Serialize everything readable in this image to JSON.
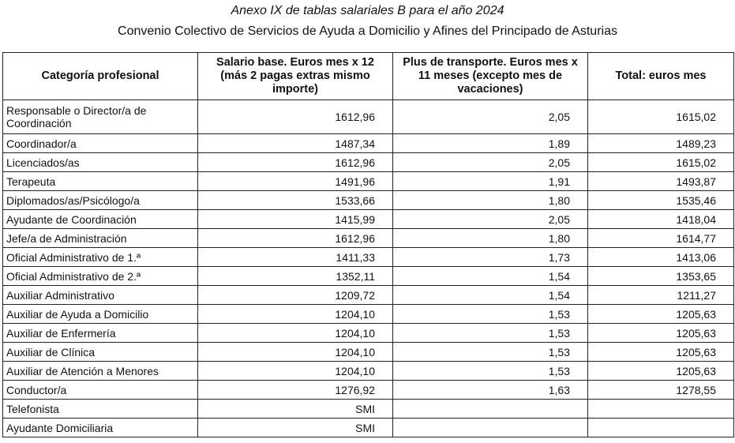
{
  "title": "Anexo IX de tablas salariales B para el año 2024",
  "subtitle": "Convenio Colectivo de Servicios de Ayuda a Domicilio y Afines del Principado de Asturias",
  "headers": [
    "Categoría profesional",
    "Salario base. Euros mes x 12 (más 2 pagas extras mismo importe)",
    "Plus de transporte. Euros mes x 11 meses (excepto mes de vacaciones)",
    "Total: euros mes"
  ],
  "rows": [
    [
      "Responsable o Director/a de Coordinación",
      "1612,96",
      "2,05",
      "1615,02"
    ],
    [
      "Coordinador/a",
      "1487,34",
      "1,89",
      "1489,23"
    ],
    [
      "Licenciados/as",
      "1612,96",
      "2,05",
      "1615,02"
    ],
    [
      "Terapeuta",
      "1491,96",
      "1,91",
      "1493,87"
    ],
    [
      "Diplomados/as/Psicólogo/a",
      "1533,66",
      "1,80",
      "1535,46"
    ],
    [
      "Ayudante de Coordinación",
      "1415,99",
      "2,05",
      "1418,04"
    ],
    [
      "Jefe/a de Administración",
      "1612,96",
      "1,80",
      "1614,77"
    ],
    [
      "Oficial Administrativo de 1.ª",
      "1411,33",
      "1,73",
      "1413,06"
    ],
    [
      "Oficial Administrativo de 2.ª",
      "1352,11",
      "1,54",
      "1353,65"
    ],
    [
      "Auxiliar Administrativo",
      "1209,72",
      "1,54",
      "1211,27"
    ],
    [
      "Auxiliar de Ayuda a Domicilio",
      "1204,10",
      "1,53",
      "1205,63"
    ],
    [
      "Auxiliar de Enfermería",
      "1204,10",
      "1,53",
      "1205,63"
    ],
    [
      "Auxiliar de Clínica",
      "1204,10",
      "1,53",
      "1205,63"
    ],
    [
      "Auxiliar de Atención a Menores",
      "1204,10",
      "1,53",
      "1205,63"
    ],
    [
      "Conductor/a",
      "1276,92",
      "1,63",
      "1278,55"
    ],
    [
      "Telefonista",
      "SMI",
      "",
      ""
    ],
    [
      "Ayudante Domiciliaria",
      "SMI",
      "",
      ""
    ]
  ]
}
